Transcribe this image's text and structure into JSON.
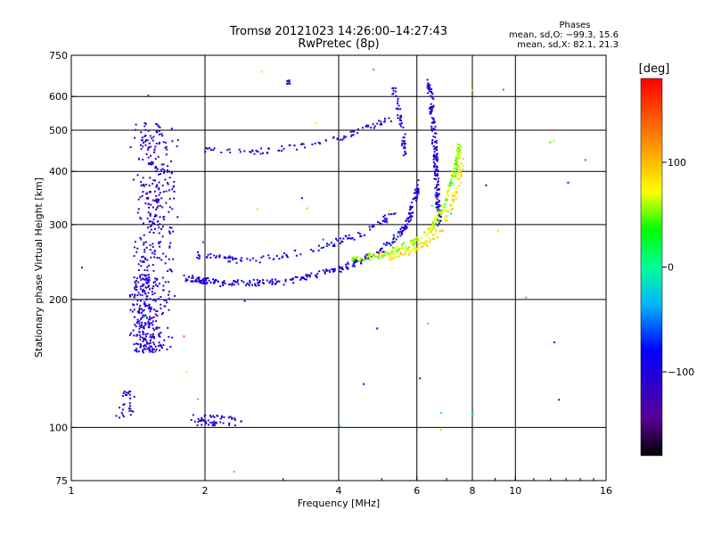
{
  "chart_data": {
    "type": "scatter",
    "title": "Tromsø 20121023 14:26:00–14:27:43",
    "subtitle": "RwPretec (8p)",
    "xlabel": "Frequency [MHz]",
    "ylabel": "Stationary phase Virtual Height [km]",
    "x_scale": "log",
    "y_scale": "log",
    "xlim": [
      1,
      16
    ],
    "ylim": [
      75,
      750
    ],
    "grid": true,
    "x_ticks": [
      {
        "value": 1,
        "label": "1"
      },
      {
        "value": 2,
        "label": "2"
      },
      {
        "value": 4,
        "label": "4"
      },
      {
        "value": 6,
        "label": "6"
      },
      {
        "value": 8,
        "label": "8"
      },
      {
        "value": 10,
        "label": "10"
      },
      {
        "value": 16,
        "label": "16"
      }
    ],
    "y_ticks": [
      {
        "value": 75,
        "label": "75"
      },
      {
        "value": 100,
        "label": "100"
      },
      {
        "value": 200,
        "label": "200"
      },
      {
        "value": 300,
        "label": "300"
      },
      {
        "value": 400,
        "label": "400"
      },
      {
        "value": 500,
        "label": "500"
      },
      {
        "value": 600,
        "label": "600"
      },
      {
        "value": 750,
        "label": "750"
      }
    ],
    "phases_box": {
      "header": "Phases",
      "line_o": "mean, sd,O: −99.3, 15.6",
      "line_x": "mean, sd,X:  82.1, 21.3"
    },
    "colorbar": {
      "label": "[deg]",
      "range": [
        -180,
        180
      ],
      "ticks": [
        {
          "value": 100,
          "label": "100"
        },
        {
          "value": 0,
          "label": "0"
        },
        {
          "value": -100,
          "label": "−100"
        }
      ]
    },
    "traces": [
      {
        "kind": "cluster",
        "phase": -110,
        "x": [
          1.35,
          1.75
        ],
        "y": [
          150,
          520
        ],
        "n": 420
      },
      {
        "kind": "cluster",
        "phase": -105,
        "x": [
          1.35,
          1.55
        ],
        "y": [
          150,
          230
        ],
        "n": 160
      },
      {
        "kind": "curve",
        "phase": -100,
        "points": [
          [
            1.8,
            225
          ],
          [
            2.2,
            218
          ],
          [
            3.0,
            220
          ],
          [
            4.0,
            235
          ],
          [
            5.0,
            260
          ],
          [
            5.7,
            300
          ],
          [
            6.1,
            380
          ]
        ],
        "n": 320
      },
      {
        "kind": "curve",
        "phase": -95,
        "points": [
          [
            1.9,
            255
          ],
          [
            2.5,
            245
          ],
          [
            3.5,
            262
          ],
          [
            4.5,
            285
          ],
          [
            5.4,
            320
          ]
        ],
        "n": 120
      },
      {
        "kind": "curve",
        "phase": -110,
        "points": [
          [
            2.0,
            450
          ],
          [
            2.6,
            445
          ],
          [
            3.2,
            455
          ],
          [
            3.8,
            470
          ],
          [
            4.5,
            500
          ],
          [
            5.2,
            530
          ]
        ],
        "n": 90
      },
      {
        "kind": "curve",
        "phase": -100,
        "points": [
          [
            5.3,
            640
          ],
          [
            5.45,
            560
          ],
          [
            5.6,
            480
          ],
          [
            5.65,
            430
          ]
        ],
        "n": 50
      },
      {
        "kind": "curve",
        "phase": -105,
        "points": [
          [
            6.4,
            650
          ],
          [
            6.55,
            500
          ],
          [
            6.65,
            380
          ],
          [
            6.75,
            300
          ]
        ],
        "n": 180
      },
      {
        "kind": "curve",
        "phase": 60,
        "points": [
          [
            4.3,
            248
          ],
          [
            5.0,
            255
          ],
          [
            5.8,
            270
          ],
          [
            6.5,
            295
          ],
          [
            7.0,
            340
          ],
          [
            7.3,
            400
          ],
          [
            7.5,
            460
          ]
        ],
        "n": 240
      },
      {
        "kind": "curve",
        "phase": 85,
        "points": [
          [
            5.2,
            250
          ],
          [
            6.0,
            262
          ],
          [
            6.8,
            290
          ],
          [
            7.4,
            360
          ],
          [
            7.6,
            430
          ]
        ],
        "n": 120
      },
      {
        "kind": "cluster",
        "phase": -110,
        "x": [
          1.8,
          2.5
        ],
        "y": [
          101,
          107
        ],
        "n": 60
      },
      {
        "kind": "cluster",
        "phase": -110,
        "x": [
          1.26,
          1.4
        ],
        "y": [
          105,
          122
        ],
        "n": 30
      },
      {
        "kind": "cluster",
        "phase": -110,
        "x": [
          3.0,
          3.2
        ],
        "y": [
          638,
          660
        ],
        "n": 8
      }
    ]
  }
}
